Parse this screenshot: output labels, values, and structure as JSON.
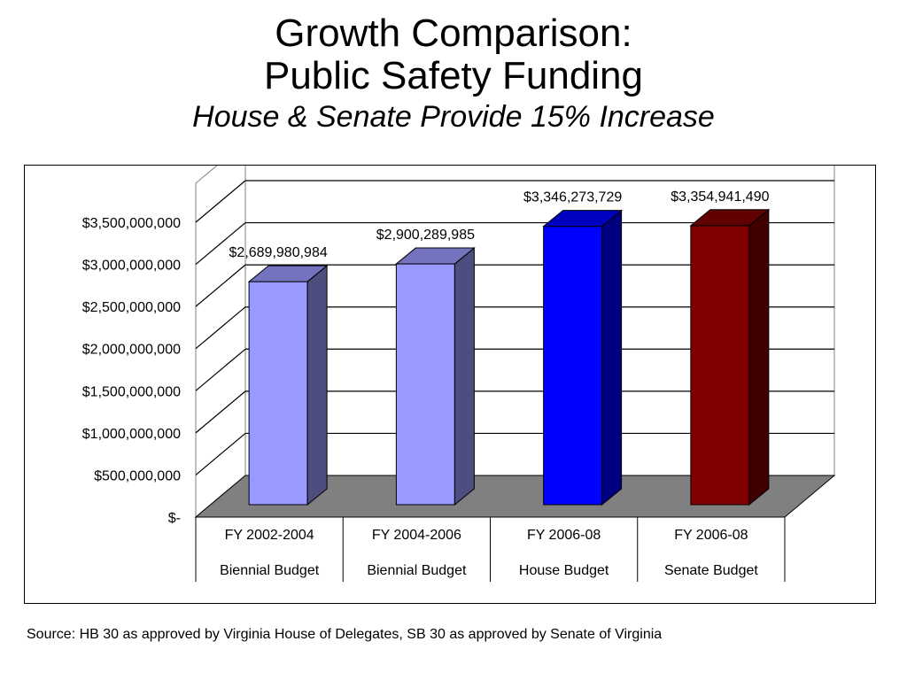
{
  "title": {
    "line1": "Growth Comparison:",
    "line2": "Public Safety Funding",
    "subtitle": "House & Senate Provide 15% Increase"
  },
  "source": "Source: HB 30 as approved by Virginia House of Delegates, SB 30 as approved by Senate of Virginia",
  "chart_data": {
    "type": "bar",
    "categories": [
      [
        "FY 2002-2004",
        "Biennial Budget"
      ],
      [
        "FY 2004-2006",
        "Biennial Budget"
      ],
      [
        "FY 2006-08",
        "House Budget"
      ],
      [
        "FY 2006-08",
        "Senate Budget"
      ]
    ],
    "values": [
      2689980984,
      2900289985,
      3346273729,
      3354941490
    ],
    "data_labels": [
      "$2,689,980,984",
      "$2,900,289,985",
      "$3,346,273,729",
      "$3,354,941,490"
    ],
    "bar_colors": [
      "#9999ff",
      "#9999ff",
      "#0000ff",
      "#800000"
    ],
    "ylim": [
      0,
      3500000000
    ],
    "yticks": [
      0,
      500000000,
      1000000000,
      1500000000,
      2000000000,
      2500000000,
      3000000000,
      3500000000
    ],
    "ytick_labels": [
      "$-",
      "$500,000,000",
      "$1,000,000,000",
      "$1,500,000,000",
      "$2,000,000,000",
      "$2,500,000,000",
      "$3,000,000,000",
      "$3,500,000,000"
    ],
    "grid": true,
    "style": "3d-column",
    "floor_color": "#808080"
  }
}
